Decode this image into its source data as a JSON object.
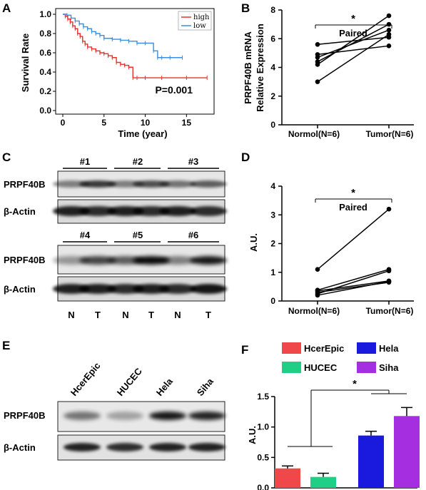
{
  "panel_letters": {
    "a": "A",
    "b": "B",
    "c": "C",
    "d": "D",
    "e": "E",
    "f": "F"
  },
  "colors": {
    "high": "#e8312b",
    "low": "#3a8fe0",
    "hcerepic": "#f0474b",
    "hucec": "#1fcf85",
    "hela": "#1a1adf",
    "siha": "#a42ee0"
  },
  "blot_c": {
    "protein": "PRPF40B",
    "control": "β-Actin",
    "groups_top": [
      "#1",
      "#2",
      "#3"
    ],
    "groups_bottom": [
      "#4",
      "#5",
      "#6"
    ],
    "lane_labels": [
      "N",
      "T",
      "N",
      "T",
      "N",
      "T"
    ]
  },
  "blot_e": {
    "protein": "PRPF40B",
    "control": "β-Actin",
    "cell_lines": [
      "HcerEpic",
      "HUCEC",
      "Hela",
      "Siha"
    ]
  },
  "chart_data": [
    {
      "id": "A",
      "type": "line",
      "ylabel": "Survival Rate",
      "xlabel": "Time (year)",
      "xlim": [
        0,
        18
      ],
      "ylim": [
        0,
        1.0
      ],
      "xticks": [
        0,
        5,
        10,
        15
      ],
      "yticks": [
        0.0,
        0.2,
        0.4,
        0.6,
        0.8,
        1.0
      ],
      "legend": [
        "high",
        "low"
      ],
      "legend_position": "top-right",
      "annotation": "P=0.001",
      "series": [
        {
          "name": "high",
          "color": "#e8312b",
          "x": [
            0,
            0.3,
            0.6,
            0.9,
            1.2,
            1.5,
            1.8,
            2.1,
            2.4,
            2.7,
            3.0,
            3.5,
            4.0,
            4.5,
            5.0,
            5.5,
            6.0,
            6.5,
            7.0,
            7.5,
            8.0,
            8.5,
            9.0,
            10.0,
            12.0,
            15.0,
            17.5
          ],
          "y": [
            1.0,
            0.98,
            0.95,
            0.92,
            0.88,
            0.85,
            0.8,
            0.77,
            0.72,
            0.69,
            0.66,
            0.64,
            0.62,
            0.6,
            0.59,
            0.57,
            0.55,
            0.5,
            0.48,
            0.47,
            0.45,
            0.34,
            0.34,
            0.34,
            0.34,
            0.34,
            0.34
          ]
        },
        {
          "name": "low",
          "color": "#3a8fe0",
          "x": [
            0,
            0.5,
            1.0,
            1.5,
            2.0,
            2.5,
            3.0,
            3.5,
            4.0,
            4.5,
            5.0,
            6.0,
            7.0,
            8.0,
            9.0,
            10.0,
            11.0,
            11.5,
            12.0,
            13.0,
            14.5
          ],
          "y": [
            1.0,
            0.99,
            0.96,
            0.93,
            0.9,
            0.87,
            0.85,
            0.82,
            0.8,
            0.78,
            0.75,
            0.74,
            0.73,
            0.72,
            0.7,
            0.7,
            0.62,
            0.55,
            0.55,
            0.55,
            0.55
          ]
        }
      ]
    },
    {
      "id": "B",
      "type": "line",
      "ylabel_lines": [
        "PRPF40B mRNA",
        "Relative Expression"
      ],
      "categories": [
        "Normol(N=6)",
        "Tumor(N=6)"
      ],
      "ylim": [
        0,
        8
      ],
      "yticks": [
        0,
        2,
        4,
        6,
        8
      ],
      "bracket_label": "Paired",
      "significance": "*",
      "pairs": [
        [
          5.6,
          6.1
        ],
        [
          4.7,
          6.6
        ],
        [
          4.4,
          7.0
        ],
        [
          4.2,
          7.6
        ],
        [
          3.0,
          6.3
        ],
        [
          4.9,
          5.5
        ]
      ]
    },
    {
      "id": "D",
      "type": "line",
      "ylabel": "A.U.",
      "categories": [
        "Normol(N=6)",
        "Tumor(N=6)"
      ],
      "ylim": [
        0,
        4
      ],
      "yticks": [
        0,
        1,
        2,
        3,
        4
      ],
      "bracket_label": "Paired",
      "significance": "*",
      "pairs": [
        [
          1.1,
          3.2
        ],
        [
          0.38,
          1.1
        ],
        [
          0.35,
          0.7
        ],
        [
          0.3,
          0.65
        ],
        [
          0.25,
          1.05
        ],
        [
          0.2,
          0.68
        ]
      ]
    },
    {
      "id": "F",
      "type": "bar",
      "ylabel": "A.U.",
      "categories": [
        "HcerEpic",
        "HUCEC",
        "Hela",
        "Siha"
      ],
      "values": [
        0.32,
        0.18,
        0.86,
        1.18
      ],
      "errors": [
        0.04,
        0.06,
        0.07,
        0.14
      ],
      "ylim": [
        0,
        1.5
      ],
      "yticks": [
        0.0,
        0.5,
        1.0,
        1.5
      ],
      "legend_position": "top",
      "significance": "*"
    }
  ]
}
